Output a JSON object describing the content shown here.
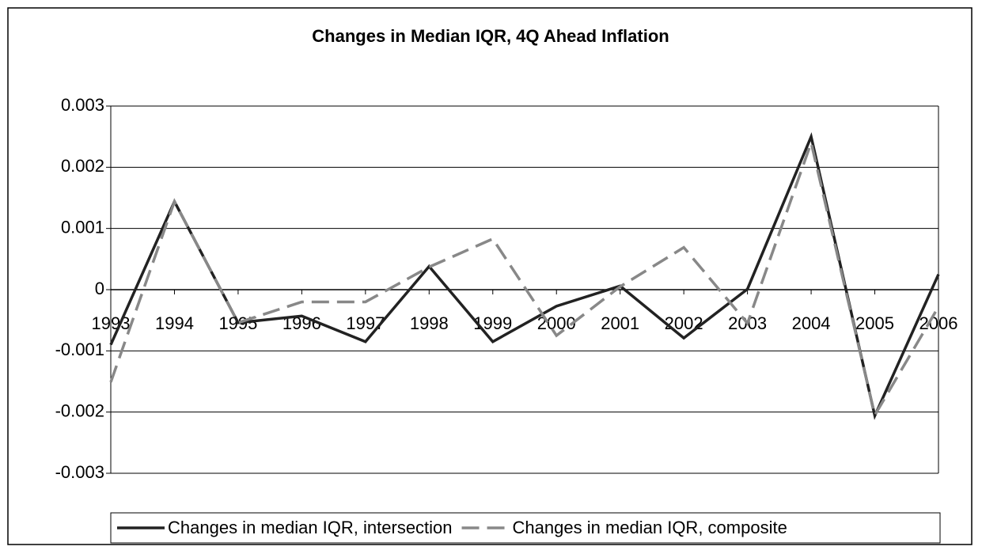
{
  "chart_data": {
    "type": "line",
    "title": "Changes in Median IQR, 4Q Ahead Inflation",
    "categories": [
      "1993",
      "1994",
      "1995",
      "1996",
      "1997",
      "1998",
      "1999",
      "2000",
      "2001",
      "2002",
      "2003",
      "2004",
      "2005",
      "2006"
    ],
    "series": [
      {
        "name": "Changes in median IQR, intersection",
        "color": "#222222",
        "dash": false,
        "values": [
          -0.0009,
          0.00144,
          -0.00054,
          -0.00043,
          -0.00085,
          0.00038,
          -0.00085,
          -0.00027,
          6e-05,
          -0.00079,
          1e-05,
          0.0025,
          -0.00206,
          0.00025
        ]
      },
      {
        "name": "Changes in median IQR, composite",
        "color": "#888888",
        "dash": true,
        "values": [
          -0.00151,
          0.00144,
          -0.00054,
          -0.0002,
          -0.0002,
          0.00037,
          0.00083,
          -0.00075,
          5e-05,
          0.00069,
          -0.00055,
          0.0024,
          -0.00205,
          -0.00028
        ]
      }
    ],
    "ylim": [
      -0.003,
      0.003
    ],
    "yticks": [
      0.003,
      0.002,
      0.001,
      0,
      -0.001,
      -0.002,
      -0.003
    ],
    "grid": true,
    "legend": "bottom"
  }
}
